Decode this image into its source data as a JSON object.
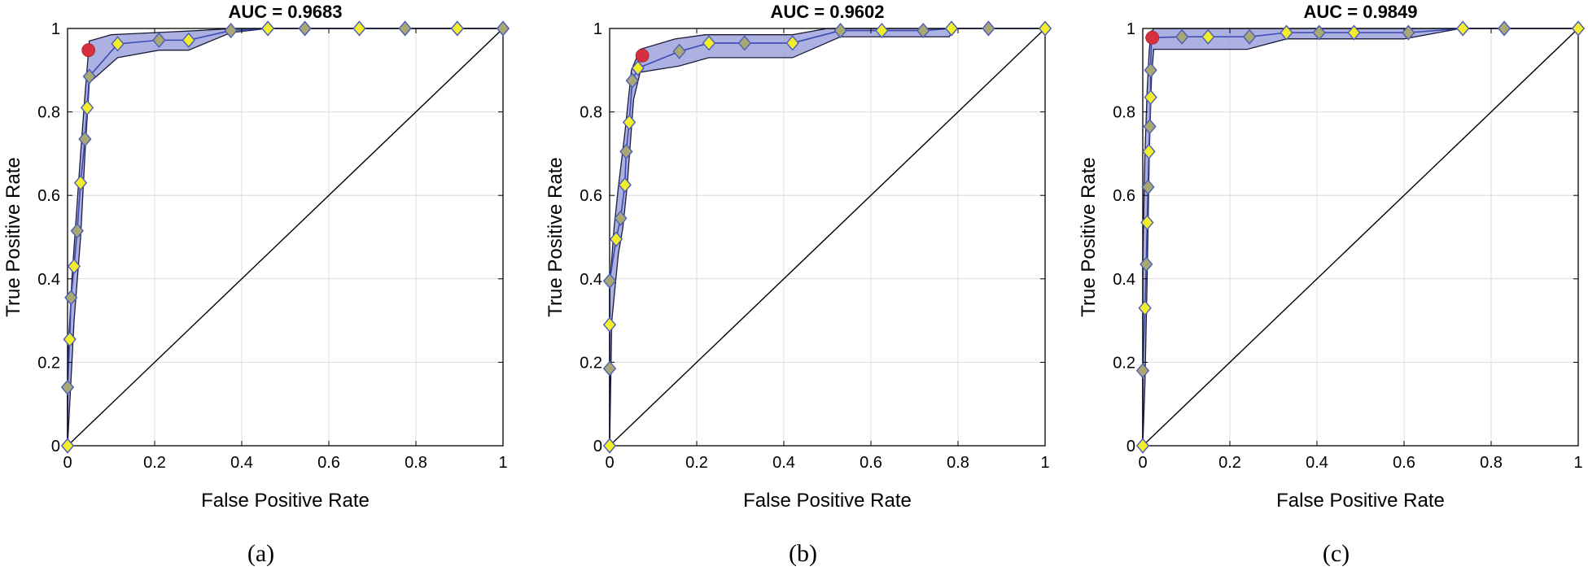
{
  "chart_data": [
    {
      "type": "line",
      "title": "AUC = 0.9683",
      "caption": "(a)",
      "xlabel": "False Positive Rate",
      "ylabel": "True Positive Rate",
      "xlim": [
        0,
        1
      ],
      "ylim": [
        0,
        1
      ],
      "xticks": [
        0,
        0.2,
        0.4,
        0.6,
        0.8,
        1
      ],
      "yticks": [
        0,
        0.2,
        0.4,
        0.6,
        0.8,
        1
      ],
      "xtick_labels": [
        "0",
        "0.2",
        "0.4",
        "0.6",
        "0.8",
        "1"
      ],
      "ytick_labels": [
        "0",
        "0.2",
        "0.4",
        "0.6",
        "0.8",
        "1"
      ],
      "grid": true,
      "diagonal": true,
      "roc": {
        "x": [
          0,
          0,
          0.005,
          0.008,
          0.015,
          0.022,
          0.03,
          0.04,
          0.045,
          0.05,
          0.115,
          0.21,
          0.278,
          0.375,
          0.46,
          0.545,
          0.67,
          0.775,
          0.895,
          1
        ],
        "y": [
          0,
          0.14,
          0.255,
          0.355,
          0.43,
          0.515,
          0.63,
          0.735,
          0.81,
          0.885,
          0.963,
          0.972,
          0.972,
          0.995,
          1,
          1,
          1,
          1,
          1,
          1
        ]
      },
      "band_upper": {
        "x": [
          0,
          0,
          0.01,
          0.02,
          0.03,
          0.04,
          0.05,
          0.1,
          0.2,
          0.3,
          0.38,
          0.46,
          1
        ],
        "y": [
          0,
          0.2,
          0.4,
          0.55,
          0.7,
          0.84,
          0.97,
          0.985,
          0.99,
          0.995,
          1,
          1,
          1
        ]
      },
      "band_lower": {
        "x": [
          0,
          0.005,
          0.015,
          0.03,
          0.04,
          0.05,
          0.115,
          0.21,
          0.278,
          0.375,
          0.46,
          1
        ],
        "y": [
          0,
          0.1,
          0.3,
          0.5,
          0.7,
          0.87,
          0.93,
          0.948,
          0.948,
          0.99,
          1,
          1
        ]
      },
      "optimal_point": {
        "x": 0.048,
        "y": 0.948
      }
    },
    {
      "type": "line",
      "title": "AUC = 0.9602",
      "caption": "(b)",
      "xlabel": "False Positive Rate",
      "ylabel": "True Positive Rate",
      "xlim": [
        0,
        1
      ],
      "ylim": [
        0,
        1
      ],
      "xticks": [
        0,
        0.2,
        0.4,
        0.6,
        0.8,
        1
      ],
      "yticks": [
        0,
        0.2,
        0.4,
        0.6,
        0.8,
        1
      ],
      "xtick_labels": [
        "0",
        "0.2",
        "0.4",
        "0.6",
        "0.8",
        "1"
      ],
      "ytick_labels": [
        "0",
        "0.2",
        "0.4",
        "0.6",
        "0.8",
        "1"
      ],
      "grid": true,
      "diagonal": true,
      "roc": {
        "x": [
          0,
          0,
          0,
          0,
          0.015,
          0.025,
          0.035,
          0.038,
          0.045,
          0.052,
          0.065,
          0.16,
          0.228,
          0.31,
          0.42,
          0.53,
          0.625,
          0.72,
          0.785,
          0.87,
          1
        ],
        "y": [
          0,
          0.185,
          0.29,
          0.395,
          0.495,
          0.545,
          0.625,
          0.705,
          0.775,
          0.875,
          0.905,
          0.945,
          0.965,
          0.965,
          0.965,
          0.995,
          0.995,
          0.995,
          1,
          1,
          1
        ]
      },
      "band_upper": {
        "x": [
          0,
          0,
          0.01,
          0.02,
          0.035,
          0.05,
          0.07,
          0.15,
          0.22,
          0.42,
          0.5,
          0.53,
          1
        ],
        "y": [
          0,
          0.38,
          0.52,
          0.62,
          0.75,
          0.9,
          0.95,
          0.975,
          0.985,
          0.985,
          1,
          1,
          1
        ]
      },
      "band_lower": {
        "x": [
          0,
          0.005,
          0.02,
          0.03,
          0.04,
          0.055,
          0.07,
          0.16,
          0.228,
          0.42,
          0.53,
          0.78,
          0.79,
          1
        ],
        "y": [
          0,
          0.3,
          0.46,
          0.52,
          0.62,
          0.83,
          0.895,
          0.91,
          0.93,
          0.93,
          0.98,
          0.98,
          1,
          1
        ]
      },
      "optimal_point": {
        "x": 0.075,
        "y": 0.935
      }
    },
    {
      "type": "line",
      "title": "AUC = 0.9849",
      "caption": "(c)",
      "xlabel": "False Positive Rate",
      "ylabel": "True Positive Rate",
      "xlim": [
        0,
        1
      ],
      "ylim": [
        0,
        1
      ],
      "xticks": [
        0,
        0.2,
        0.4,
        0.6,
        0.8,
        1
      ],
      "yticks": [
        0,
        0.2,
        0.4,
        0.6,
        0.8,
        1
      ],
      "xtick_labels": [
        "0",
        "0.2",
        "0.4",
        "0.6",
        "0.8",
        "1"
      ],
      "ytick_labels": [
        "0",
        "0.2",
        "0.4",
        "0.6",
        "0.8",
        "1"
      ],
      "grid": true,
      "diagonal": true,
      "roc": {
        "x": [
          0,
          0,
          0.005,
          0.008,
          0.01,
          0.012,
          0.014,
          0.016,
          0.018,
          0.018,
          0.02,
          0.09,
          0.15,
          0.245,
          0.33,
          0.405,
          0.485,
          0.61,
          0.735,
          0.83,
          1
        ],
        "y": [
          0,
          0.18,
          0.33,
          0.435,
          0.535,
          0.62,
          0.705,
          0.765,
          0.835,
          0.9,
          0.978,
          0.98,
          0.98,
          0.98,
          0.99,
          0.99,
          0.99,
          0.99,
          1,
          1,
          1
        ]
      },
      "band_upper": {
        "x": [
          0,
          0,
          0.005,
          0.01,
          0.015,
          0.02,
          0.025,
          0.1,
          0.25,
          0.33,
          0.6,
          0.73,
          1
        ],
        "y": [
          0,
          0.45,
          0.7,
          0.85,
          0.95,
          0.99,
          1,
          1,
          1,
          1,
          1,
          1,
          1
        ]
      },
      "band_lower": {
        "x": [
          0,
          0.005,
          0.01,
          0.015,
          0.02,
          0.025,
          0.24,
          0.33,
          0.6,
          0.73,
          1
        ],
        "y": [
          0,
          0.15,
          0.4,
          0.7,
          0.88,
          0.95,
          0.95,
          0.975,
          0.975,
          1,
          1
        ]
      },
      "optimal_point": {
        "x": 0.022,
        "y": 0.978
      }
    }
  ],
  "colors": {
    "band_fill": "#9fa3dc",
    "band_edge": "#1b1b3a",
    "roc_line": "#3b49b3",
    "marker_fill": "#f2ee2b",
    "marker_fill_alt": "#a9a872",
    "marker_edge": "#4a5db8",
    "optimal_point": "#d6303f",
    "grid": "#dcdcdc",
    "axis": "#000000"
  },
  "markers": {
    "shape": "diamond"
  }
}
